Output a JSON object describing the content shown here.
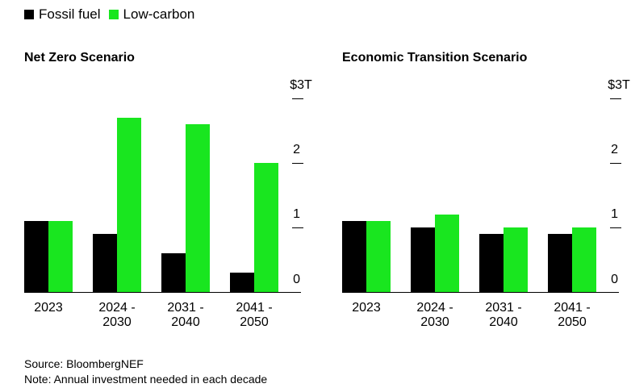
{
  "legend": {
    "items": [
      {
        "label": "Fossil fuel",
        "color": "#000000"
      },
      {
        "label": "Low-carbon",
        "color": "#19e61f"
      }
    ]
  },
  "chart_data": [
    {
      "type": "bar",
      "title": "Net Zero Scenario",
      "categories": [
        "2023",
        "2024 - 2030",
        "2031 - 2040",
        "2041 - 2050"
      ],
      "category_lines": [
        [
          "2023"
        ],
        [
          "2024 -",
          "2030"
        ],
        [
          "2031 -",
          "2040"
        ],
        [
          "2041 -",
          "2050"
        ]
      ],
      "series": [
        {
          "name": "Fossil fuel",
          "color": "#000000",
          "values": [
            1.1,
            0.9,
            0.6,
            0.3
          ]
        },
        {
          "name": "Low-carbon",
          "color": "#19e61f",
          "values": [
            1.1,
            2.7,
            2.6,
            2.0
          ]
        }
      ],
      "ylim": [
        0,
        3
      ],
      "yticks": [
        0,
        1,
        2,
        3
      ],
      "ytick_labels": [
        "0",
        "1",
        "2",
        "$3T"
      ]
    },
    {
      "type": "bar",
      "title": "Economic Transition Scenario",
      "categories": [
        "2023",
        "2024 - 2030",
        "2031 - 2040",
        "2041 - 2050"
      ],
      "category_lines": [
        [
          "2023"
        ],
        [
          "2024 -",
          "2030"
        ],
        [
          "2031 -",
          "2040"
        ],
        [
          "2041 -",
          "2050"
        ]
      ],
      "series": [
        {
          "name": "Fossil fuel",
          "color": "#000000",
          "values": [
            1.1,
            1.0,
            0.9,
            0.9
          ]
        },
        {
          "name": "Low-carbon",
          "color": "#19e61f",
          "values": [
            1.1,
            1.2,
            1.0,
            1.0
          ]
        }
      ],
      "ylim": [
        0,
        3
      ],
      "yticks": [
        0,
        1,
        2,
        3
      ],
      "ytick_labels": [
        "0",
        "1",
        "2",
        "$3T"
      ]
    }
  ],
  "footer": {
    "source": "Source: BloombergNEF",
    "note": "Note: Annual investment needed in each decade"
  }
}
